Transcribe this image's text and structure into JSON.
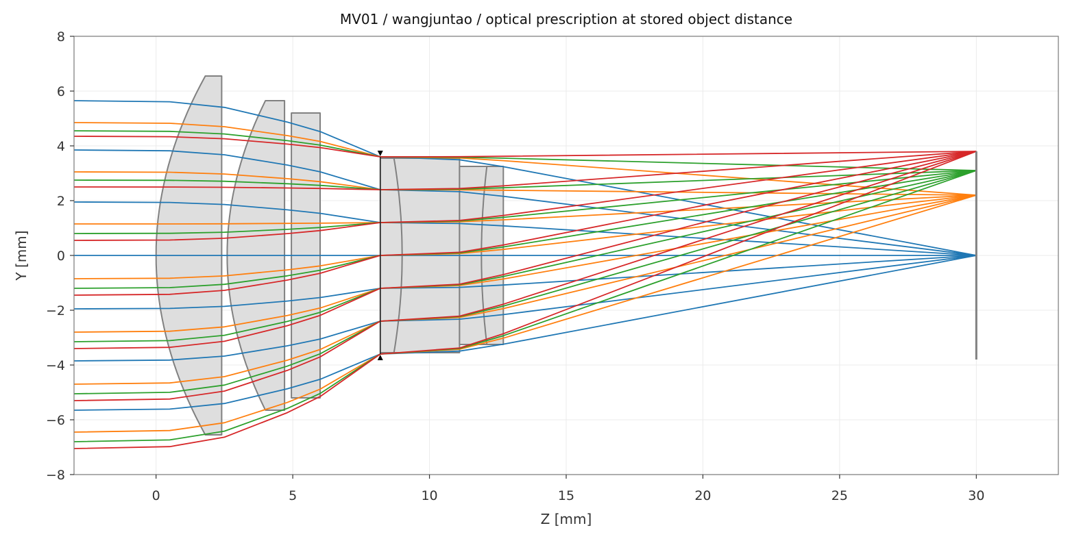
{
  "chart_data": {
    "type": "optical-layout",
    "title": "MV01 / wangjuntao / optical prescription at stored object distance",
    "xlabel": "Z [mm]",
    "ylabel": "Y [mm]",
    "xlim": [
      -3,
      33
    ],
    "ylim": [
      -8,
      8
    ],
    "xticks": [
      0,
      5,
      10,
      15,
      20,
      25,
      30
    ],
    "xtick_labels": [
      "0",
      "5",
      "10",
      "15",
      "20",
      "25",
      "30"
    ],
    "yticks": [
      -8,
      -6,
      -4,
      -2,
      0,
      2,
      4,
      6,
      8
    ],
    "ytick_labels": [
      "−8",
      "−6",
      "−4",
      "−2",
      "0",
      "2",
      "4",
      "6",
      "8"
    ],
    "grid": true,
    "colors": {
      "field_0": "#1f77b4",
      "field_1": "#ff7f0e",
      "field_2": "#2ca02c",
      "field_3": "#d62728",
      "element_fill": "#dedede",
      "element_edge": "#808080"
    },
    "elements": [
      {
        "name": "lens-1",
        "z_front": 0.0,
        "z_back": 2.4,
        "semi_diameter": 6.55,
        "edge_front": 1.8,
        "edge_back": 2.4,
        "front_bulge": "convex",
        "back_bulge": "flat"
      },
      {
        "name": "lens-2",
        "z_front": 2.6,
        "z_back": 4.7,
        "semi_diameter": 5.65,
        "edge_front": 4.0,
        "edge_back": 4.7,
        "front_bulge": "convex",
        "back_bulge": "flat"
      },
      {
        "name": "lens-3",
        "z_front": 4.95,
        "z_back": 6.0,
        "semi_diameter": 5.2,
        "edge_front": 4.95,
        "edge_back": 6.0,
        "front_bulge": "flat",
        "back_bulge": "concave"
      },
      {
        "name": "lens-4",
        "z_front": 8.2,
        "z_back": 11.1,
        "semi_diameter": 3.55,
        "edge_front": 8.2,
        "edge_back": 11.1,
        "front_bulge": "flat",
        "back_bulge": "flat",
        "inner_surface_z_center": 9.0,
        "inner_surface_z_edge": 8.7
      },
      {
        "name": "lens-5",
        "z_front": 11.1,
        "z_back": 12.7,
        "semi_diameter": 3.25,
        "edge_front": 11.1,
        "edge_back": 12.7,
        "front_bulge": "concave",
        "back_bulge": "flat",
        "inner_surface_z_center": 11.9,
        "inner_surface_z_edge": 12.1
      }
    ],
    "aperture_stop": {
      "z": 8.2,
      "semi_diameter": 3.6
    },
    "image_plane": {
      "z": 30.0,
      "y_min": -3.8,
      "y_max": 3.8
    },
    "fields": [
      {
        "color": "#1f77b4",
        "image_y": 0.0,
        "rays": [
          {
            "y0": 5.65,
            "y_stop": 3.6
          },
          {
            "y0": 3.85,
            "y_stop": 2.4
          },
          {
            "y0": 1.95,
            "y_stop": 1.2
          },
          {
            "y0": 0.0,
            "y_stop": 0.0
          },
          {
            "y0": -1.95,
            "y_stop": -1.2
          },
          {
            "y0": -3.85,
            "y_stop": -2.4
          },
          {
            "y0": -5.65,
            "y_stop": -3.6
          }
        ]
      },
      {
        "color": "#ff7f0e",
        "image_y": 2.2,
        "rays": [
          {
            "y0": 4.85,
            "y_stop": 3.6
          },
          {
            "y0": 3.05,
            "y_stop": 2.4
          },
          {
            "y0": 1.15,
            "y_stop": 1.2
          },
          {
            "y0": -0.85,
            "y_stop": 0.0
          },
          {
            "y0": -2.8,
            "y_stop": -1.2
          },
          {
            "y0": -4.7,
            "y_stop": -2.4
          },
          {
            "y0": -6.45,
            "y_stop": -3.6
          }
        ]
      },
      {
        "color": "#2ca02c",
        "image_y": 3.1,
        "rays": [
          {
            "y0": 4.55,
            "y_stop": 3.6
          },
          {
            "y0": 2.75,
            "y_stop": 2.4
          },
          {
            "y0": 0.8,
            "y_stop": 1.2
          },
          {
            "y0": -1.2,
            "y_stop": 0.0
          },
          {
            "y0": -3.15,
            "y_stop": -1.2
          },
          {
            "y0": -5.05,
            "y_stop": -2.4
          },
          {
            "y0": -6.8,
            "y_stop": -3.6
          }
        ]
      },
      {
        "color": "#d62728",
        "image_y": 3.8,
        "rays": [
          {
            "y0": 4.35,
            "y_stop": 3.6
          },
          {
            "y0": 2.5,
            "y_stop": 2.4
          },
          {
            "y0": 0.55,
            "y_stop": 1.2
          },
          {
            "y0": -1.45,
            "y_stop": 0.0
          },
          {
            "y0": -3.4,
            "y_stop": -1.2
          },
          {
            "y0": -5.3,
            "y_stop": -2.4
          },
          {
            "y0": -7.05,
            "y_stop": -3.6
          }
        ]
      }
    ]
  }
}
